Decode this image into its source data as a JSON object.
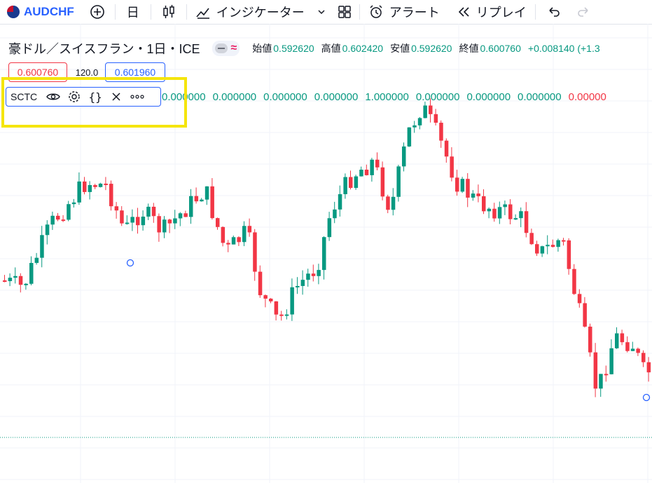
{
  "toolbar": {
    "symbol": "AUDCHF",
    "interval": "日",
    "indicators_label": "インジケーター",
    "alert_label": "アラート",
    "replay_label": "リプレイ"
  },
  "legend": {
    "title": "豪ドル／スイスフラン・1日・ICE",
    "open_label": "始値",
    "open": "0.592620",
    "high_label": "高値",
    "high": "0.602420",
    "low_label": "安値",
    "low": "0.592620",
    "close_label": "終値",
    "close": "0.600760",
    "change": "+0.008140 (+1.3"
  },
  "order_panel": {
    "sell_price": "0.600760",
    "spread": "120.0",
    "buy_price": "0.601960"
  },
  "indicator": {
    "name": "SCTC",
    "values": [
      "0.000000",
      "0.000000",
      "0.000000",
      "0.000000",
      "1.000000",
      "0.000000",
      "0.000000",
      "0.000000",
      "0.00000"
    ]
  },
  "colors": {
    "up": "#089981",
    "down": "#f23645",
    "accent": "#2962ff",
    "highlight": "#f5e50a"
  },
  "icons": [
    "plus-circle-icon",
    "candlestick-icon",
    "indicators-icon",
    "layout-grid-icon",
    "alarm-clock-icon",
    "rewind-icon",
    "undo-icon",
    "redo-icon",
    "eye-icon",
    "gear-icon",
    "braces-icon",
    "close-icon",
    "more-icon"
  ]
}
